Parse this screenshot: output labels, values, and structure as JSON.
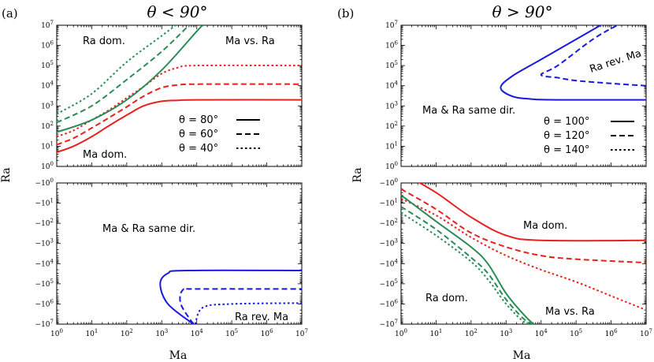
{
  "figure": {
    "panel_a": {
      "label": "(a)",
      "title": "θ < 90°"
    },
    "panel_b": {
      "label": "(b)",
      "title": "θ > 90°"
    },
    "xlabel": "Ma",
    "ylabel": "Ra"
  },
  "axes_labels": {
    "x": [
      "10^0",
      "10^1",
      "10^2",
      "10^3",
      "10^4",
      "10^5",
      "10^6",
      "10^7"
    ],
    "y_pos": [
      "10^0",
      "10^1",
      "10^2",
      "10^3",
      "10^4",
      "10^5",
      "10^6",
      "10^7"
    ],
    "y_neg": [
      "-10^0",
      "-10^1",
      "-10^2",
      "-10^3",
      "-10^4",
      "-10^5",
      "-10^6",
      "-10^7"
    ]
  },
  "annotations": {
    "a_top_ra_dom": "Ra dom.",
    "a_top_ma_vs_ra": "Ma vs. Ra",
    "a_top_ma_dom": "Ma dom.",
    "a_bot_same_dir": "Ma & Ra same dir.",
    "a_bot_ra_rev": "Ra rev. Ma",
    "b_top_ra_rev": "Ra rev. Ma",
    "b_top_same_dir": "Ma & Ra same dir.",
    "b_bot_ma_dom": "Ma dom.",
    "b_bot_ra_dom": "Ra dom.",
    "b_bot_ma_vs_ra": "Ma vs. Ra"
  },
  "legends": {
    "a": [
      "θ = 80°",
      "θ = 60°",
      "θ = 40°"
    ],
    "b": [
      "θ = 100°",
      "θ = 120°",
      "θ = 140°"
    ]
  },
  "colors": {
    "red": "#e8211c",
    "green": "#2a8c55",
    "blue": "#1919e0"
  },
  "chart_data": [
    {
      "type": "line",
      "panel": "a-top",
      "title": "θ < 90°",
      "xscale": "log",
      "yscale": "log",
      "xlim": [
        1,
        10000000
      ],
      "ylim": [
        1,
        10000000
      ],
      "xlabel": "",
      "ylabel": "Ra",
      "series": [
        {
          "name": "θ = 80° red",
          "color": "red",
          "dash": "solid",
          "points": [
            [
              1,
              5
            ],
            [
              3,
              10
            ],
            [
              10,
              30
            ],
            [
              30,
              100
            ],
            [
              100,
              350
            ],
            [
              300,
              1000
            ],
            [
              1000,
              1700
            ],
            [
              3000,
              1900
            ],
            [
              10000,
              2000
            ],
            [
              10000000,
              2000
            ]
          ]
        },
        {
          "name": "θ = 60° red",
          "color": "red",
          "dash": "dash",
          "points": [
            [
              1,
              12
            ],
            [
              3,
              25
            ],
            [
              10,
              80
            ],
            [
              30,
              250
            ],
            [
              100,
              900
            ],
            [
              300,
              3000
            ],
            [
              1000,
              8000
            ],
            [
              3000,
              11000
            ],
            [
              10000,
              12000
            ],
            [
              10000000,
              12000
            ]
          ]
        },
        {
          "name": "θ = 40° red",
          "color": "red",
          "dash": "dot",
          "points": [
            [
              1,
              30
            ],
            [
              3,
              60
            ],
            [
              10,
              200
            ],
            [
              30,
              600
            ],
            [
              100,
              2500
            ],
            [
              300,
              9000
            ],
            [
              1000,
              40000
            ],
            [
              3000,
              80000
            ],
            [
              10000,
              100000
            ],
            [
              10000000,
              100000
            ]
          ]
        },
        {
          "name": "θ = 80° green",
          "color": "green",
          "dash": "solid",
          "points": [
            [
              1,
              50
            ],
            [
              10,
              200
            ],
            [
              100,
              2000
            ],
            [
              1000,
              60000
            ],
            [
              10000,
              5000000
            ],
            [
              15000,
              10000000
            ]
          ]
        },
        {
          "name": "θ = 60° green",
          "color": "green",
          "dash": "dash",
          "points": [
            [
              1,
              150
            ],
            [
              10,
              1000
            ],
            [
              100,
              20000
            ],
            [
              1000,
              500000
            ],
            [
              6000,
              10000000
            ]
          ]
        },
        {
          "name": "θ = 40° green",
          "color": "green",
          "dash": "dot",
          "points": [
            [
              1,
              400
            ],
            [
              10,
              4000
            ],
            [
              100,
              150000
            ],
            [
              1000,
              3000000
            ],
            [
              2500,
              10000000
            ]
          ]
        }
      ]
    },
    {
      "type": "line",
      "panel": "a-bottom",
      "xscale": "log",
      "yscale": "log-negative",
      "xlim": [
        1,
        10000000
      ],
      "ylim": [
        -1,
        -10000000
      ],
      "xlabel": "Ma",
      "ylabel": "Ra",
      "series": [
        {
          "name": "θ = 80° blue",
          "color": "blue",
          "dash": "solid",
          "points": [
            [
              8000,
              -10000000
            ],
            [
              1500,
              -1000000
            ],
            [
              900,
              -100000
            ],
            [
              1500,
              -30000
            ],
            [
              5000,
              -22000
            ],
            [
              10000000,
              -22000
            ]
          ]
        },
        {
          "name": "θ = 60° blue",
          "color": "blue",
          "dash": "dash",
          "points": [
            [
              8000,
              -10000000
            ],
            [
              3500,
              -1000000
            ],
            [
              4000,
              -200000
            ],
            [
              10000,
              -180000
            ],
            [
              10000000,
              -180000
            ]
          ]
        },
        {
          "name": "θ = 40° blue",
          "color": "blue",
          "dash": "dot",
          "points": [
            [
              9000,
              -10000000
            ],
            [
              15000,
              -1500000
            ],
            [
              100000,
              -1000000
            ],
            [
              10000000,
              -900000
            ]
          ]
        }
      ]
    },
    {
      "type": "line",
      "panel": "b-top",
      "title": "θ > 90°",
      "xscale": "log",
      "yscale": "log",
      "xlim": [
        1,
        10000000
      ],
      "ylim": [
        1,
        10000000
      ],
      "xlabel": "",
      "ylabel": "",
      "series": [
        {
          "name": "θ = 100° blue",
          "color": "blue",
          "dash": "solid",
          "points": [
            [
              10000000,
              2000
            ],
            [
              30000,
              2000
            ],
            [
              5000,
              2200
            ],
            [
              1500,
              3000
            ],
            [
              700,
              8000
            ],
            [
              1500,
              30000
            ],
            [
              10000,
              200000
            ],
            [
              100000,
              2000000
            ],
            [
              500000,
              10000000
            ]
          ]
        },
        {
          "name": "θ = 120° blue",
          "color": "blue",
          "dash": "dash",
          "points": [
            [
              10000000,
              10000
            ],
            [
              1000000,
              13000
            ],
            [
              100000,
              18000
            ],
            [
              30000,
              25000
            ],
            [
              10000,
              35000
            ],
            [
              30000,
              100000
            ],
            [
              300000,
              2000000
            ],
            [
              1500000,
              10000000
            ]
          ]
        },
        {
          "name": "θ = 140° blue",
          "color": "blue",
          "dash": "dot",
          "points": []
        }
      ]
    },
    {
      "type": "line",
      "panel": "b-bottom",
      "xscale": "log",
      "yscale": "log-negative",
      "xlim": [
        1,
        10000000
      ],
      "ylim": [
        -1,
        -10000000
      ],
      "xlabel": "Ma",
      "ylabel": "Ra",
      "series": [
        {
          "name": "θ = 100° red",
          "color": "red",
          "dash": "solid",
          "points": [
            [
              1,
              -0.3
            ],
            [
              10,
              -3
            ],
            [
              100,
              -50
            ],
            [
              1000,
              -400
            ],
            [
              10000,
              -700
            ],
            [
              10000000,
              -700
            ]
          ]
        },
        {
          "name": "θ = 120° red",
          "color": "red",
          "dash": "dash",
          "points": [
            [
              1,
              -2
            ],
            [
              10,
              -20
            ],
            [
              100,
              -300
            ],
            [
              1000,
              -1500
            ],
            [
              10000,
              -4000
            ],
            [
              100000,
              -6000
            ],
            [
              10000000,
              -9000
            ]
          ]
        },
        {
          "name": "θ = 140° red",
          "color": "red",
          "dash": "dot",
          "points": [
            [
              1,
              -6
            ],
            [
              10,
              -40
            ],
            [
              100,
              -500
            ],
            [
              1000,
              -4000
            ],
            [
              10000,
              -20000
            ],
            [
              100000,
              -80000
            ],
            [
              1000000,
              -400000
            ],
            [
              10000000,
              -2000000
            ]
          ]
        },
        {
          "name": "θ = 100° green",
          "color": "green",
          "dash": "solid",
          "points": [
            [
              1,
              -4
            ],
            [
              10,
              -80
            ],
            [
              100,
              -1500
            ],
            [
              300,
              -10000
            ],
            [
              1000,
              -300000
            ],
            [
              3000,
              -3000000
            ],
            [
              6000,
              -10000000
            ]
          ]
        },
        {
          "name": "θ = 120° green",
          "color": "green",
          "dash": "dash",
          "points": [
            [
              1,
              -15
            ],
            [
              10,
              -200
            ],
            [
              100,
              -5000
            ],
            [
              300,
              -30000
            ],
            [
              1000,
              -600000
            ],
            [
              3000,
              -5000000
            ],
            [
              5500,
              -10000000
            ]
          ]
        },
        {
          "name": "θ = 140° green",
          "color": "green",
          "dash": "dot",
          "points": [
            [
              1,
              -30
            ],
            [
              10,
              -400
            ],
            [
              100,
              -8000
            ],
            [
              300,
              -60000
            ],
            [
              1000,
              -1000000
            ],
            [
              3000,
              -7000000
            ],
            [
              5000,
              -10000000
            ]
          ]
        }
      ]
    }
  ]
}
